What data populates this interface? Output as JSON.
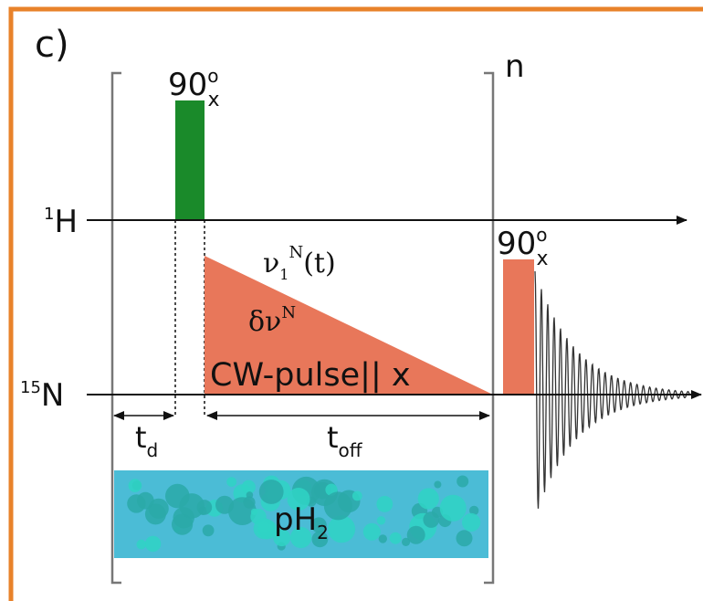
{
  "panel_label": "c)",
  "repeat_label": "n",
  "pulses": [
    {
      "angle": "90",
      "degree": "o",
      "phase": "x"
    },
    {
      "angle": "90",
      "degree": "o",
      "phase": "x"
    }
  ],
  "channels": [
    {
      "mass": "1",
      "element": "H"
    },
    {
      "mass": "15",
      "element": "N"
    }
  ],
  "cw_pulse": {
    "amplitude": {
      "symbol": "ν",
      "sub": "1",
      "sup": "N",
      "arg": "(t)"
    },
    "offset": {
      "symbol": "δν",
      "sup": "N"
    },
    "label": "CW-pulse|| x"
  },
  "delays": [
    {
      "symbol": "t",
      "sub": "d"
    },
    {
      "symbol": "t",
      "sub": "off"
    }
  ],
  "gas": {
    "symbol": "pH",
    "sub": "2"
  }
}
